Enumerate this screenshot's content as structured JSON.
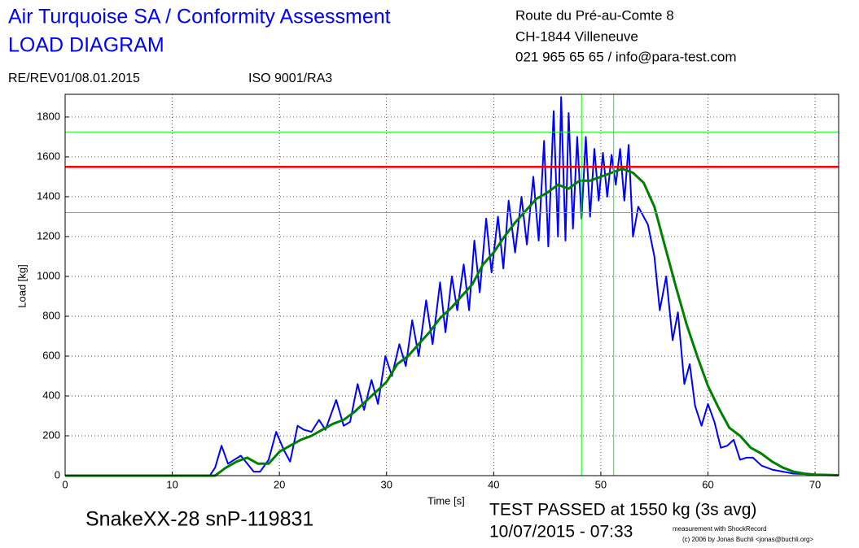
{
  "chart_data": {
    "type": "line",
    "title": "Air Turquoise SA / Conformity Assessment",
    "subtitle": "LOAD DIAGRAM",
    "header_right": [
      "Route du Pré-au-Comte 8",
      "CH-1844 Villeneuve",
      "021 965 65 65 / info@para-test.com"
    ],
    "header_left": [
      "RE/REV01/08.01.2015",
      "ISO 9001/RA3"
    ],
    "x_label": "Time [s]",
    "y_label": "Load [kg]",
    "annotations": [
      "SnakeXX-28 snP-119831",
      "TEST PASSED at 1550 kg (3s avg)",
      "10/07/2015 - 07:33",
      "measurement with ShockRecord",
      "(c) 2006 by Jonas Buchli <jonas@buchli.org>"
    ],
    "xlim": [
      0,
      72.2
    ],
    "ylim": [
      0,
      1914
    ],
    "xticks": [
      0,
      10,
      20,
      30,
      40,
      50,
      60,
      70
    ],
    "yticks": [
      0,
      200,
      400,
      600,
      800,
      1000,
      1200,
      1400,
      1600,
      1800
    ],
    "grid": true,
    "hlines": [
      {
        "value": 1550,
        "color": "#ff0000",
        "width": 2.5
      },
      {
        "value": 1725,
        "color": "#00ff00",
        "width": 1
      },
      {
        "value": 1320,
        "color": "#00ff00",
        "width": 1
      }
    ],
    "vlines": [
      {
        "value": 48.2,
        "color": "#00ff00",
        "width": 1
      },
      {
        "value": 51.2,
        "color": "#00ff00",
        "width": 1
      }
    ],
    "series": [
      {
        "color": "#0000ff",
        "x": [
          0,
          13.5,
          14,
          14.6,
          15.2,
          15.8,
          16.4,
          17,
          17.6,
          18.2,
          19,
          19.7,
          20.4,
          21,
          21.7,
          22.3,
          23,
          23.7,
          24.3,
          25.3,
          26,
          26.6,
          27.3,
          27.9,
          28.6,
          29.2,
          29.9,
          30.5,
          31.2,
          31.8,
          32.4,
          33,
          33.7,
          34.3,
          35,
          35.5,
          36.1,
          36.6,
          37.2,
          37.7,
          38.2,
          38.7,
          39.3,
          39.8,
          40.4,
          40.9,
          41.4,
          42,
          42.6,
          43.1,
          43.7,
          44.2,
          44.7,
          45.1,
          45.6,
          46,
          46.3,
          46.7,
          47,
          47.4,
          47.8,
          48.2,
          48.6,
          49,
          49.4,
          49.8,
          50.2,
          50.6,
          51,
          51.4,
          51.8,
          52.2,
          52.6,
          53,
          53.5,
          54,
          54.4,
          55,
          55.5,
          56.1,
          56.7,
          57.2,
          57.8,
          58.3,
          58.8,
          59.4,
          60,
          60.6,
          61.2,
          61.8,
          62.4,
          63,
          63.6,
          64.2,
          65,
          66,
          67,
          68,
          69,
          70,
          72.2
        ],
        "values": [
          0,
          0,
          40,
          150,
          60,
          80,
          100,
          60,
          20,
          20,
          80,
          220,
          130,
          70,
          250,
          230,
          220,
          280,
          230,
          380,
          250,
          270,
          460,
          330,
          480,
          360,
          600,
          500,
          660,
          550,
          780,
          600,
          880,
          660,
          970,
          720,
          1000,
          830,
          1060,
          830,
          1180,
          920,
          1290,
          1020,
          1300,
          1040,
          1380,
          1120,
          1400,
          1160,
          1500,
          1180,
          1680,
          1150,
          1830,
          1200,
          1900,
          1180,
          1820,
          1240,
          1700,
          1290,
          1700,
          1300,
          1640,
          1380,
          1620,
          1400,
          1610,
          1460,
          1640,
          1380,
          1660,
          1200,
          1350,
          1300,
          1260,
          1100,
          830,
          1000,
          680,
          820,
          460,
          560,
          350,
          250,
          360,
          270,
          140,
          150,
          180,
          80,
          90,
          90,
          50,
          30,
          20,
          10,
          8,
          5,
          3
        ]
      },
      {
        "color": "#008000",
        "x": [
          0,
          14,
          15,
          16,
          17,
          18,
          19,
          20,
          21,
          22,
          23,
          24,
          25,
          26,
          27,
          28,
          29,
          30,
          31,
          32,
          33,
          34,
          35,
          36,
          37,
          38,
          39,
          40,
          41,
          42,
          43,
          44,
          45,
          46,
          47,
          48,
          49,
          50,
          51,
          52,
          53,
          54,
          55,
          56,
          57,
          58,
          59,
          60,
          61,
          62,
          63,
          64,
          65,
          66,
          67,
          68,
          69,
          70,
          72.2
        ],
        "values": [
          0,
          0,
          40,
          70,
          90,
          60,
          60,
          120,
          150,
          180,
          200,
          230,
          260,
          280,
          320,
          370,
          420,
          470,
          560,
          600,
          660,
          720,
          790,
          840,
          900,
          960,
          1060,
          1120,
          1200,
          1270,
          1330,
          1390,
          1420,
          1460,
          1440,
          1480,
          1480,
          1500,
          1520,
          1540,
          1520,
          1470,
          1350,
          1150,
          950,
          760,
          600,
          450,
          340,
          240,
          200,
          140,
          110,
          70,
          40,
          20,
          10,
          5,
          2
        ]
      }
    ]
  }
}
